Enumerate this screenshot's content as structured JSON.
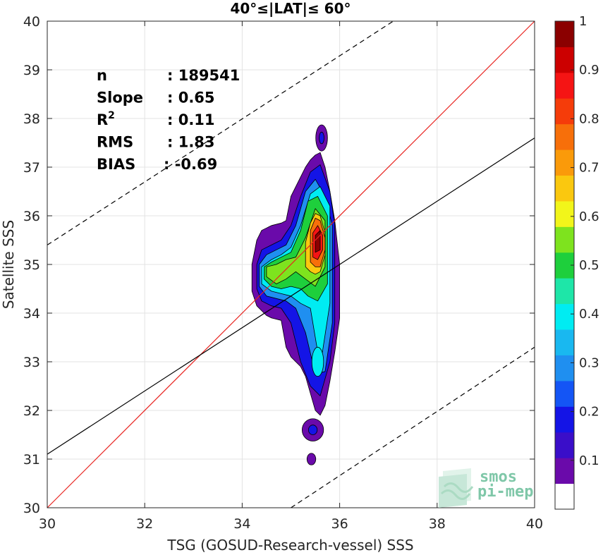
{
  "chart_data": {
    "type": "heatmap",
    "title": "40°≤|LAT|≤ 60°",
    "xlabel": "TSG (GOSUD-Research-vessel) SSS",
    "ylabel": "Satellite SSS",
    "xlim": [
      30,
      40
    ],
    "ylim": [
      30,
      40
    ],
    "x_ticks": [
      "30",
      "32",
      "34",
      "36",
      "38",
      "40"
    ],
    "y_ticks": [
      "30",
      "31",
      "32",
      "33",
      "34",
      "35",
      "36",
      "37",
      "38",
      "39",
      "40"
    ],
    "grid": true,
    "stats": [
      {
        "label": "n",
        "value": ": 189541"
      },
      {
        "label": "Slope",
        "value": ": 0.65"
      },
      {
        "label": "R",
        "sup": "2",
        "value": ": 0.11"
      },
      {
        "label": "RMS",
        "value": ": 1.83"
      },
      {
        "label": "BIAS",
        "value": ": -0.69"
      }
    ],
    "lines": [
      {
        "kind": "one-to-one",
        "color": "#e8231f",
        "style": "solid",
        "points": [
          [
            30,
            30
          ],
          [
            40,
            40
          ]
        ]
      },
      {
        "kind": "regression",
        "color": "#000000",
        "style": "solid",
        "points": [
          [
            30,
            31.1
          ],
          [
            40,
            37.6
          ]
        ]
      },
      {
        "kind": "upper-bound",
        "color": "#000000",
        "style": "dashed",
        "points": [
          [
            30,
            35.4
          ],
          [
            37.1,
            40
          ]
        ]
      },
      {
        "kind": "lower-bound",
        "color": "#000000",
        "style": "dashed",
        "points": [
          [
            35.0,
            30
          ],
          [
            40,
            33.3
          ]
        ]
      }
    ],
    "colorbar": {
      "ticks": [
        "0.1",
        "0.2",
        "0.3",
        "0.4",
        "0.5",
        "0.6",
        "0.7",
        "0.8",
        "0.9",
        "1"
      ],
      "tick_values": [
        0.1,
        0.2,
        0.3,
        0.4,
        0.5,
        0.6,
        0.7,
        0.8,
        0.9,
        1.0
      ],
      "range": [
        0,
        1
      ],
      "colors": [
        "#ffffff",
        "#6a0aaa",
        "#3a0ec9",
        "#1414e6",
        "#1455f5",
        "#1f8ff0",
        "#19b8f0",
        "#00ecf2",
        "#1ee6a8",
        "#1ecf3c",
        "#7ee31e",
        "#f2f51a",
        "#fac80f",
        "#fa9a0a",
        "#f76f0a",
        "#f53c0a",
        "#f51414",
        "#cc0000",
        "#8b0000"
      ]
    },
    "density_levels": [
      {
        "level": 0.05,
        "x": [
          34.2,
          34.3,
          34.4,
          34.5,
          34.6,
          34.8,
          34.9,
          35.0,
          35.2,
          35.3,
          35.4,
          35.5,
          35.6,
          35.7,
          35.8,
          35.9,
          36.0
        ],
        "y_low": [
          34.45,
          34.15,
          34.05,
          33.95,
          33.9,
          33.85,
          33.3,
          33.1,
          32.9,
          32.7,
          32.35,
          32.0,
          31.9,
          32.1,
          32.6,
          33.2,
          33.9
        ],
        "y_high": [
          35.0,
          35.5,
          35.7,
          35.75,
          35.8,
          35.85,
          35.9,
          36.4,
          36.8,
          37.0,
          37.15,
          37.25,
          37.3,
          37.0,
          36.5,
          35.9,
          35.0
        ]
      },
      {
        "level": 0.15,
        "x": [
          34.3,
          34.4,
          34.6,
          34.8,
          35.0,
          35.2,
          35.4,
          35.6,
          35.8,
          35.9
        ],
        "y_low": [
          34.5,
          34.25,
          34.15,
          34.1,
          33.8,
          33.0,
          32.5,
          32.3,
          33.0,
          33.8
        ],
        "y_high": [
          35.0,
          35.3,
          35.4,
          35.5,
          35.8,
          36.4,
          36.9,
          37.05,
          36.5,
          35.8
        ]
      },
      {
        "level": 0.25,
        "x": [
          34.35,
          34.5,
          34.7,
          34.9,
          35.1,
          35.3,
          35.5,
          35.7,
          35.85
        ],
        "y_low": [
          34.55,
          34.35,
          34.3,
          34.25,
          34.1,
          33.6,
          32.75,
          32.8,
          33.8
        ],
        "y_high": [
          35.0,
          35.2,
          35.3,
          35.4,
          35.8,
          36.5,
          36.75,
          36.4,
          35.8
        ]
      },
      {
        "level": 0.35,
        "x": [
          34.4,
          34.6,
          34.8,
          35.0,
          35.2,
          35.4,
          35.6,
          35.8
        ],
        "y_low": [
          34.6,
          34.45,
          34.4,
          34.35,
          34.2,
          34.1,
          32.9,
          34.2
        ],
        "y_high": [
          34.95,
          35.1,
          35.2,
          35.35,
          35.8,
          36.45,
          36.6,
          36.2
        ]
      },
      {
        "level": 0.45,
        "x": [
          34.45,
          34.6,
          34.8,
          35.0,
          35.2,
          35.35,
          35.55,
          35.75
        ],
        "y_low": [
          34.7,
          34.55,
          34.5,
          34.55,
          34.5,
          34.35,
          34.25,
          34.6
        ],
        "y_high": [
          34.95,
          35.05,
          35.15,
          35.25,
          35.7,
          36.3,
          36.4,
          36.0
        ]
      },
      {
        "level": 0.55,
        "x": [
          34.5,
          34.7,
          34.9,
          35.1,
          35.3,
          35.5,
          35.7
        ],
        "y_low": [
          34.75,
          34.6,
          34.7,
          34.85,
          34.7,
          34.55,
          34.95
        ],
        "y_high": [
          34.95,
          35.0,
          35.1,
          35.15,
          35.55,
          36.15,
          35.9
        ]
      },
      {
        "level": 0.65,
        "x": [
          35.3,
          35.4,
          35.5,
          35.6,
          35.7
        ],
        "y_low": [
          34.95,
          34.85,
          34.8,
          34.85,
          35.2
        ],
        "y_high": [
          35.45,
          35.85,
          36.05,
          36.0,
          35.65
        ]
      },
      {
        "level": 0.75,
        "x": [
          35.4,
          35.5,
          35.6,
          35.7
        ],
        "y_low": [
          35.05,
          34.95,
          34.95,
          35.3
        ],
        "y_high": [
          35.7,
          35.95,
          35.9,
          35.55
        ]
      },
      {
        "level": 0.85,
        "x": [
          35.45,
          35.55,
          35.65
        ],
        "y_low": [
          35.15,
          35.1,
          35.3
        ],
        "y_high": [
          35.65,
          35.8,
          35.6
        ]
      },
      {
        "level": 0.95,
        "x": [
          35.5,
          35.6
        ],
        "y_low": [
          35.25,
          35.3
        ],
        "y_high": [
          35.6,
          35.7
        ]
      }
    ],
    "islands": [
      {
        "level": 0.05,
        "cx": 35.63,
        "cy": 37.6,
        "rx": 0.12,
        "ry": 0.27
      },
      {
        "level": 0.15,
        "cx": 35.63,
        "cy": 37.6,
        "rx": 0.05,
        "ry": 0.12
      },
      {
        "level": 0.05,
        "cx": 35.45,
        "cy": 31.6,
        "rx": 0.22,
        "ry": 0.23
      },
      {
        "level": 0.15,
        "cx": 35.45,
        "cy": 31.6,
        "rx": 0.09,
        "ry": 0.1
      },
      {
        "level": 0.05,
        "cx": 35.42,
        "cy": 31.0,
        "rx": 0.09,
        "ry": 0.12
      },
      {
        "level": 0.35,
        "cx": 35.55,
        "cy": 33.0,
        "rx": 0.12,
        "ry": 0.3
      }
    ]
  },
  "logo": {
    "line1": "smos",
    "line2": "pi-mep"
  }
}
